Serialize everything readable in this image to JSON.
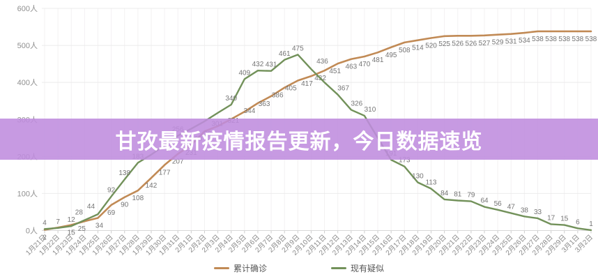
{
  "banner": {
    "title": "甘孜最新疫情报告更新，今日数据速览",
    "bg_color": "#bf8cde",
    "text_color": "#ffffff"
  },
  "chart_data": {
    "type": "line",
    "title": "",
    "xlabel": "",
    "ylabel": "人",
    "ylim": [
      0,
      600
    ],
    "grid": true,
    "legend_position": "bottom",
    "y_tick_labels": [
      "0人",
      "100人",
      "200人",
      "300人",
      "400人",
      "500人",
      "600人"
    ],
    "x": [
      "1月21日",
      "1月22日",
      "1月23日",
      "1月24日",
      "1月25日",
      "1月26日",
      "1月27日",
      "1月28日",
      "1月29日",
      "1月30日",
      "1月31日",
      "2月1日",
      "2月2日",
      "2月3日",
      "2月4日",
      "2月5日",
      "2月6日",
      "2月7日",
      "2月8日",
      "2月9日",
      "2月10日",
      "2月11日",
      "2月12日",
      "2月13日",
      "2月14日",
      "2月15日",
      "2月16日",
      "2月17日",
      "2月18日",
      "2月19日",
      "2月20日",
      "2月21日",
      "2月22日",
      "2月23日",
      "2月24日",
      "2月25日",
      "2月26日",
      "2月27日",
      "2月28日",
      "2月29日",
      "3月1日",
      "3月2日"
    ],
    "series": [
      {
        "name": "累计确诊",
        "color": "#c18a55",
        "values": [
          2,
          8,
          15,
          25,
          34,
          69,
          90,
          108,
          142,
          177,
          207,
          231,
          268,
          282,
          301,
          321,
          344,
          363,
          386,
          405,
          417,
          432,
          451,
          463,
          470,
          481,
          495,
          508,
          514,
          520,
          525,
          526,
          526,
          527,
          529,
          531,
          534,
          538,
          538,
          538,
          538,
          538
        ],
        "hidden_label_indices": [
          1
        ],
        "label_side": "below"
      },
      {
        "name": "现有疑似",
        "color": "#72915a",
        "values": [
          4,
          7,
          12,
          28,
          44,
          92,
          138,
          183,
          205,
          230,
          256,
          275,
          295,
          318,
          340,
          409,
          432,
          431,
          461,
          475,
          436,
          400,
          367,
          326,
          310,
          250,
          191,
          173,
          130,
          113,
          84,
          81,
          79,
          64,
          56,
          47,
          38,
          33,
          17,
          15,
          6,
          1
        ],
        "hidden_label_indices": [
          8,
          9,
          11,
          12,
          13,
          21,
          25
        ],
        "label_side": "above"
      }
    ]
  }
}
